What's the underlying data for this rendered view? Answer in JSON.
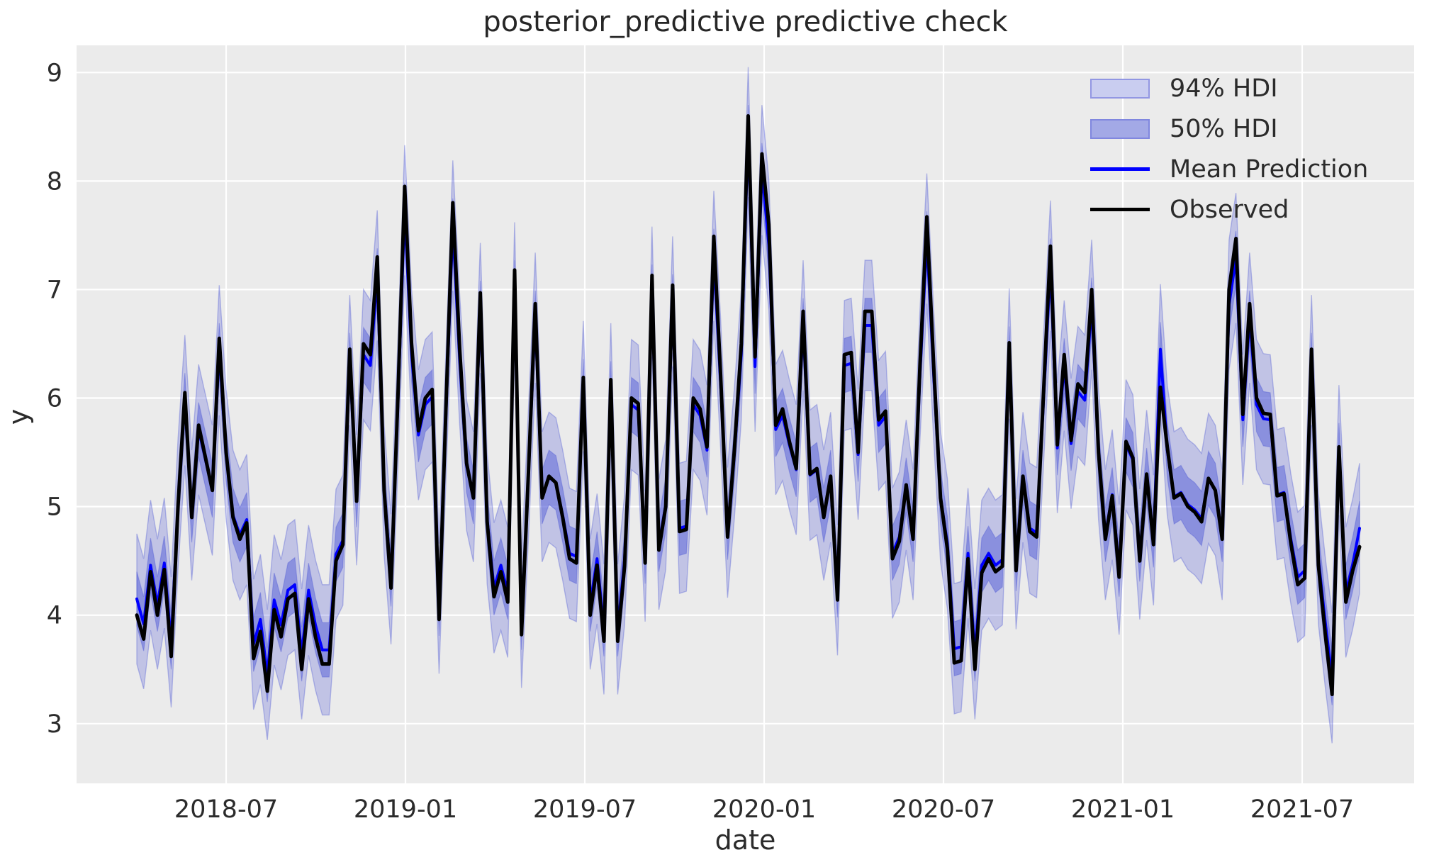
{
  "figure": {
    "title": "posterior_predictive predictive check",
    "xlabel": "date",
    "ylabel": "y"
  },
  "legend": {
    "items": [
      {
        "label": "94% HDI",
        "type": "patch",
        "color": "#c9cdf0"
      },
      {
        "label": "50% HDI",
        "type": "patch",
        "color": "#a3a9e6"
      },
      {
        "label": "Mean Prediction",
        "type": "line",
        "color": "#0000ff"
      },
      {
        "label": "Observed",
        "type": "line",
        "color": "#000000"
      }
    ]
  },
  "chart_data": {
    "type": "line",
    "title": "posterior_predictive predictive check",
    "xlabel": "date",
    "ylabel": "y",
    "legend_position": "upper right",
    "grid": "white gridlines on light gray axes background",
    "background_color": "#ebebeb",
    "grid_color": "#ffffff",
    "text_color": "#2b2b2b",
    "ylim": [
      2.45,
      9.25
    ],
    "y_ticks": [
      3,
      4,
      5,
      6,
      7,
      8,
      9
    ],
    "y_tick_labels": [
      "3",
      "4",
      "5",
      "6",
      "7",
      "8",
      "9"
    ],
    "x_tick_labels": [
      "2018-07",
      "2019-01",
      "2019-07",
      "2020-01",
      "2020-07",
      "2021-01",
      "2021-07"
    ],
    "x_start_date": "2018-04-01",
    "x_frequency": "weekly",
    "colors": {
      "observed_line": "#000000",
      "mean_line": "#0000ff",
      "hdi94_fill": "rgba(72,82,212,0.26)",
      "hdi50_fill": "rgba(72,82,212,0.45)",
      "hdi_edge": "rgba(72,82,212,0.35)",
      "legend_hdi94_patch": "#c9cdf0",
      "legend_hdi50_patch": "#a3a9e6"
    },
    "series": {
      "hdi_94_halfwidth": 0.6,
      "hdi_50_halfwidth": 0.25,
      "observed": [
        4.0,
        3.78,
        4.4,
        4.0,
        4.42,
        3.62,
        5.0,
        6.05,
        4.9,
        5.75,
        5.45,
        5.15,
        6.55,
        5.5,
        4.9,
        4.7,
        4.85,
        3.6,
        3.85,
        3.3,
        4.05,
        3.8,
        4.15,
        4.2,
        3.5,
        4.15,
        3.8,
        3.55,
        3.55,
        4.5,
        4.65,
        6.45,
        5.05,
        6.5,
        6.4,
        7.3,
        5.15,
        4.25,
        6.0,
        7.95,
        6.5,
        5.7,
        6.0,
        6.08,
        3.96,
        5.9,
        7.8,
        6.45,
        5.4,
        5.08,
        6.97,
        4.86,
        4.17,
        4.4,
        4.12,
        7.18,
        3.82,
        5.3,
        6.87,
        5.08,
        5.28,
        5.22,
        4.9,
        4.52,
        4.48,
        6.19,
        4.0,
        4.46,
        3.76,
        6.17,
        3.76,
        4.45,
        6.0,
        5.95,
        4.48,
        7.13,
        4.6,
        5.0,
        7.04,
        4.77,
        4.79,
        6.0,
        5.9,
        5.55,
        7.49,
        6.2,
        4.72,
        5.53,
        6.5,
        8.6,
        6.38,
        8.25,
        7.6,
        5.75,
        5.9,
        5.6,
        5.35,
        6.8,
        5.3,
        5.35,
        4.9,
        5.28,
        4.14,
        6.4,
        6.42,
        5.5,
        6.8,
        6.8,
        5.8,
        5.88,
        4.52,
        4.68,
        5.2,
        4.7,
        6.3,
        7.67,
        6.3,
        5.08,
        4.61,
        3.56,
        3.58,
        4.52,
        3.5,
        4.39,
        4.52,
        4.4,
        4.45,
        6.51,
        4.41,
        5.28,
        4.77,
        4.72,
        6.06,
        7.4,
        5.57,
        6.4,
        5.61,
        6.13,
        6.05,
        7.0,
        5.5,
        4.7,
        5.1,
        4.35,
        5.6,
        5.45,
        4.5,
        5.3,
        4.65,
        6.1,
        5.55,
        5.08,
        5.12,
        5.0,
        4.95,
        4.86,
        5.26,
        5.15,
        4.7,
        7.0,
        7.47,
        5.85,
        6.87,
        6.0,
        5.86,
        5.85,
        5.1,
        5.12,
        4.66,
        4.28,
        4.34,
        6.45,
        4.46,
        3.83,
        3.27,
        5.55,
        4.12,
        4.41,
        4.63
      ],
      "mean_prediction": [
        4.15,
        3.92,
        4.46,
        4.1,
        4.48,
        3.75,
        5.02,
        5.98,
        4.92,
        5.71,
        5.43,
        5.15,
        6.44,
        5.48,
        4.92,
        4.74,
        4.88,
        3.73,
        3.96,
        3.45,
        4.14,
        3.91,
        4.23,
        4.28,
        3.64,
        4.23,
        3.91,
        3.68,
        3.68,
        4.56,
        4.69,
        6.35,
        5.06,
        6.4,
        6.3,
        7.13,
        5.15,
        4.33,
        5.94,
        7.73,
        6.4,
        5.66,
        5.94,
        6.01,
        4.06,
        5.84,
        7.59,
        6.35,
        5.38,
        5.09,
        6.83,
        4.89,
        4.25,
        4.46,
        4.21,
        7.02,
        3.93,
        5.29,
        6.74,
        5.09,
        5.27,
        5.22,
        4.92,
        4.57,
        4.54,
        6.11,
        4.1,
        4.52,
        3.87,
        6.09,
        3.87,
        4.51,
        5.94,
        5.89,
        4.54,
        6.98,
        4.65,
        5.02,
        6.89,
        4.8,
        4.82,
        5.94,
        5.84,
        5.52,
        7.31,
        6.12,
        4.76,
        5.5,
        6.4,
        8.45,
        6.29,
        8.1,
        7.41,
        5.71,
        5.84,
        5.57,
        5.34,
        6.67,
        5.29,
        5.34,
        4.92,
        5.27,
        4.23,
        6.3,
        6.32,
        5.48,
        6.67,
        6.67,
        5.75,
        5.83,
        4.57,
        4.72,
        5.2,
        4.74,
        6.21,
        7.47,
        6.21,
        5.09,
        4.66,
        3.69,
        3.71,
        4.57,
        3.64,
        4.46,
        4.57,
        4.46,
        4.51,
        6.41,
        4.47,
        5.27,
        4.8,
        4.76,
        5.99,
        7.22,
        5.54,
        6.3,
        5.58,
        6.06,
        5.98,
        6.86,
        5.48,
        4.74,
        5.11,
        4.42,
        5.57,
        5.43,
        4.56,
        5.29,
        4.69,
        6.45,
        5.52,
        5.09,
        5.13,
        5.02,
        4.97,
        4.89,
        5.26,
        5.15,
        4.74,
        6.86,
        7.29,
        5.8,
        6.74,
        5.94,
        5.81,
        5.8,
        5.11,
        5.13,
        4.7,
        4.35,
        4.41,
        6.35,
        4.52,
        3.94,
        3.42,
        5.52,
        4.21,
        4.47,
        4.8
      ]
    }
  }
}
